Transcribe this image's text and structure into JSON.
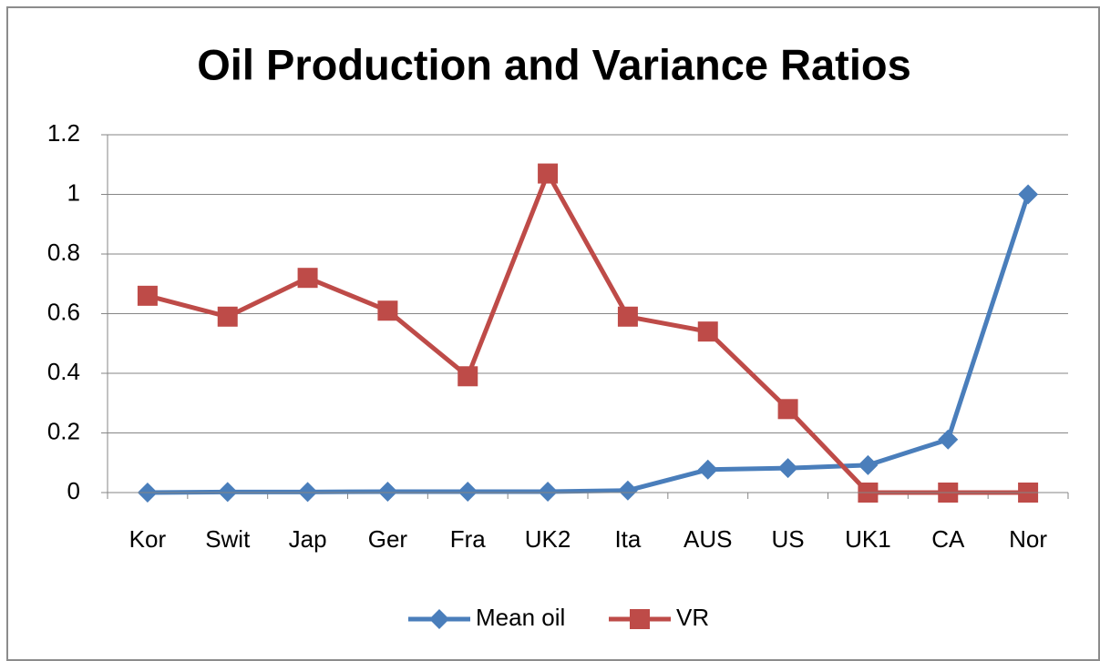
{
  "chart_data": {
    "type": "line",
    "title": "Oil Production and Variance Ratios",
    "categories": [
      "Kor",
      "Swit",
      "Jap",
      "Ger",
      "Fra",
      "UK2",
      "Ita",
      "AUS",
      "US",
      "UK1",
      "CA",
      "Nor"
    ],
    "series": [
      {
        "name": "Mean oil",
        "color": "#4a7ebb",
        "marker": "diamond",
        "values": [
          0,
          0.002,
          0.002,
          0.003,
          0.003,
          0.003,
          0.007,
          0.077,
          0.082,
          0.092,
          0.178,
          1.0
        ]
      },
      {
        "name": "VR",
        "color": "#be4b48",
        "marker": "square",
        "values": [
          0.66,
          0.59,
          0.72,
          0.61,
          0.39,
          1.07,
          0.59,
          0.54,
          0.28,
          0,
          0,
          0
        ]
      }
    ],
    "ylim": [
      0,
      1.2
    ],
    "yticks": [
      0,
      0.2,
      0.4,
      0.6,
      0.8,
      1,
      1.2
    ],
    "grid": true,
    "legend": "bottom"
  }
}
